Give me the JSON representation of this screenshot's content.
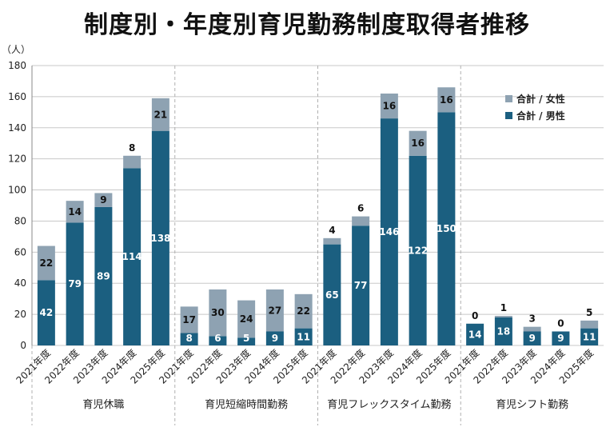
{
  "chart_data": {
    "type": "bar",
    "stacked": true,
    "title": "制度別・年度別育児勤務制度取得者推移",
    "ylabel": "（人）",
    "ylim": [
      0,
      180
    ],
    "yticks": [
      0,
      20,
      40,
      60,
      80,
      100,
      120,
      140,
      160,
      180
    ],
    "grid": true,
    "legend_position": "top-right",
    "groups": [
      {
        "name": "育児休職",
        "categories": [
          "2021年度",
          "2022年度",
          "2023年度",
          "2024年度",
          "2025年度"
        ]
      },
      {
        "name": "育児短縮時間勤務",
        "categories": [
          "2021年度",
          "2022年度",
          "2023年度",
          "2024年度",
          "2025年度"
        ]
      },
      {
        "name": "育児フレックスタイム勤務",
        "categories": [
          "2021年度",
          "2022年度",
          "2023年度",
          "2024年度",
          "2025年度"
        ]
      },
      {
        "name": "育児シフト勤務",
        "categories": [
          "2021年度",
          "2022年度",
          "2023年度",
          "2024年度",
          "2025年度"
        ]
      }
    ],
    "series": [
      {
        "name": "合計 / 男性",
        "color": "#1b5f80",
        "label_color": "#ffffff",
        "values": [
          42,
          79,
          89,
          114,
          138,
          8,
          6,
          5,
          9,
          11,
          65,
          77,
          146,
          122,
          150,
          14,
          18,
          9,
          9,
          11
        ]
      },
      {
        "name": "合計 / 女性",
        "color": "#8ea2b2",
        "label_color": "#111111",
        "values": [
          22,
          14,
          9,
          8,
          21,
          17,
          30,
          24,
          27,
          22,
          4,
          6,
          16,
          16,
          16,
          0,
          1,
          3,
          0,
          5
        ]
      }
    ]
  }
}
